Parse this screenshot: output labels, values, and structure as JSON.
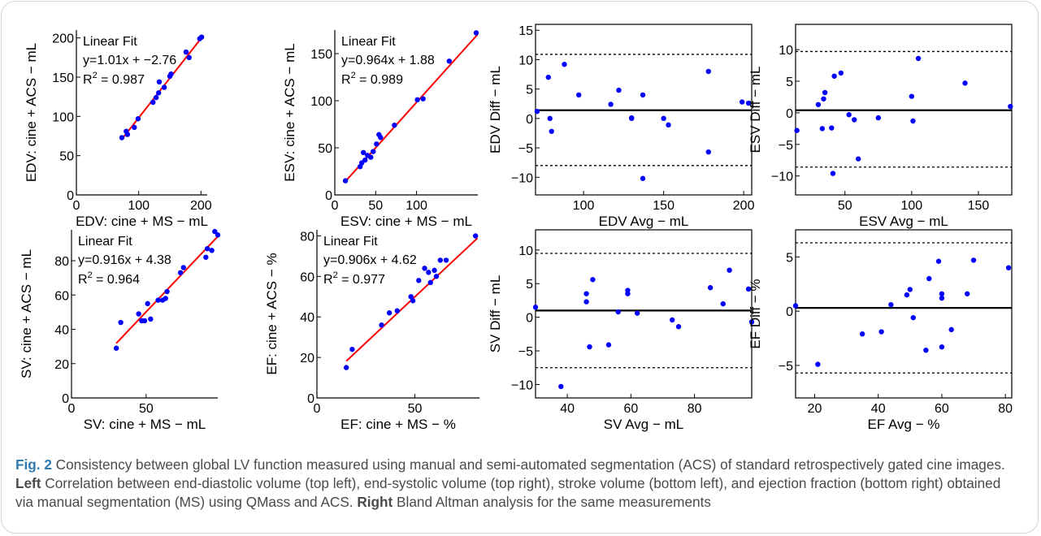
{
  "caption": {
    "fig_label": "Fig. 2",
    "text_a": " Consistency between global LV function measured using manual and semi-automated segmentation (ACS) of standard retrospectively gated cine images. ",
    "left_word": "Left",
    "text_b": " Correlation between end-diastolic volume (top left), end-systolic volume (top right), stroke volume (bottom left), and ejection fraction (bottom right) obtained via manual segmentation (MS) using QMass and ACS. ",
    "right_word": "Right",
    "text_c": " Bland Altman analysis for the same measurements"
  },
  "chart_data": [
    {
      "id": "edv-corr",
      "type": "scatter",
      "xlabel": "EDV: cine + MS − mL",
      "ylabel": "EDV: cine + ACS − mL",
      "xlim": [
        0,
        210
      ],
      "ylim": [
        0,
        210
      ],
      "xticks": [
        0,
        100,
        200
      ],
      "yticks": [
        0,
        50,
        100,
        150,
        200
      ],
      "annotation": [
        "Linear Fit",
        "y=1.01x + −2.76",
        "R2 = 0.987"
      ],
      "fit": {
        "slope": 1.01,
        "intercept": -2.76,
        "x_range": [
          72,
          200
        ]
      },
      "points": [
        [
          73,
          73
        ],
        [
          80,
          81
        ],
        [
          82,
          77
        ],
        [
          93,
          86
        ],
        [
          99,
          97
        ],
        [
          123,
          118
        ],
        [
          128,
          124
        ],
        [
          132,
          130
        ],
        [
          133,
          144
        ],
        [
          141,
          137
        ],
        [
          150,
          151
        ],
        [
          152,
          154
        ],
        [
          176,
          182
        ],
        [
          181,
          175
        ],
        [
          198,
          199
        ],
        [
          201,
          201
        ]
      ]
    },
    {
      "id": "esv-corr",
      "type": "scatter",
      "xlabel": "ESV: cine + MS − mL",
      "ylabel": "ESV: cine + ACS − mL",
      "xlim": [
        0,
        175
      ],
      "ylim": [
        0,
        175
      ],
      "xticks": [
        0,
        50,
        100
      ],
      "yticks": [
        0,
        50,
        100,
        150
      ],
      "annotation": [
        "Linear Fit",
        "y=0.964x + 1.88",
        "R2 = 0.989"
      ],
      "fit": {
        "slope": 0.964,
        "intercept": 1.88,
        "x_range": [
          12,
          175
        ]
      },
      "points": [
        [
          13,
          15
        ],
        [
          31,
          30
        ],
        [
          33,
          34
        ],
        [
          35,
          45
        ],
        [
          37,
          37
        ],
        [
          40,
          42
        ],
        [
          44,
          40
        ],
        [
          47,
          46
        ],
        [
          51,
          54
        ],
        [
          54,
          64
        ],
        [
          56,
          61
        ],
        [
          73,
          74
        ],
        [
          101,
          101
        ],
        [
          108,
          102
        ],
        [
          140,
          142
        ],
        [
          173,
          172
        ]
      ]
    },
    {
      "id": "sv-corr",
      "type": "scatter",
      "xlabel": "SV: cine + MS − mL",
      "ylabel": "SV: cine + ACS − mL",
      "xlim": [
        0,
        98
      ],
      "ylim": [
        0,
        98
      ],
      "xticks": [
        0,
        50
      ],
      "yticks": [
        0,
        20,
        40,
        60,
        80
      ],
      "annotation": [
        "Linear Fit",
        "y=0.916x + 4.38",
        "R2 = 0.964"
      ],
      "fit": {
        "slope": 0.916,
        "intercept": 4.38,
        "x_range": [
          30,
          98
        ]
      },
      "points": [
        [
          30,
          29
        ],
        [
          33,
          44
        ],
        [
          45,
          49
        ],
        [
          47,
          45
        ],
        [
          49,
          45
        ],
        [
          51,
          55
        ],
        [
          53,
          46
        ],
        [
          58,
          57
        ],
        [
          61,
          57
        ],
        [
          63,
          58
        ],
        [
          64,
          62
        ],
        [
          73,
          73
        ],
        [
          75,
          76
        ],
        [
          90,
          82
        ],
        [
          91,
          87
        ],
        [
          94,
          86
        ],
        [
          96,
          97
        ],
        [
          98,
          95
        ]
      ]
    },
    {
      "id": "ef-corr",
      "type": "scatter",
      "xlabel": "EF: cine + MS − %",
      "ylabel": "EF: cine + ACS − %",
      "xlim": [
        0,
        83
      ],
      "ylim": [
        0,
        83
      ],
      "xticks": [
        0,
        50
      ],
      "yticks": [
        0,
        20,
        40,
        60,
        80
      ],
      "annotation": [
        "Linear Fit",
        "y=0.906x + 4.62",
        "R2 = 0.977"
      ],
      "fit": {
        "slope": 0.906,
        "intercept": 4.62,
        "x_range": [
          15,
          82
        ]
      },
      "points": [
        [
          15,
          15
        ],
        [
          18,
          24
        ],
        [
          33,
          36
        ],
        [
          37,
          42
        ],
        [
          41,
          43
        ],
        [
          48,
          50
        ],
        [
          49,
          48
        ],
        [
          52,
          58
        ],
        [
          55,
          64
        ],
        [
          57,
          62
        ],
        [
          58,
          57
        ],
        [
          60,
          63
        ],
        [
          61,
          60
        ],
        [
          63,
          68
        ],
        [
          66,
          68
        ],
        [
          81,
          80
        ]
      ]
    },
    {
      "id": "edv-ba",
      "type": "scatter",
      "xlabel": "EDV Avg − mL",
      "ylabel": "EDV Diff − mL",
      "xlim": [
        70,
        205
      ],
      "ylim": [
        -13,
        16
      ],
      "xticks": [
        100,
        150,
        200
      ],
      "yticks": [
        -10,
        -5,
        0,
        5,
        10,
        15
      ],
      "mean": 1.4,
      "loa": [
        -8,
        10.9
      ],
      "points": [
        [
          71,
          1.2
        ],
        [
          78,
          7
        ],
        [
          79,
          0
        ],
        [
          80,
          -2.2
        ],
        [
          88,
          9.2
        ],
        [
          97,
          4
        ],
        [
          117,
          2.4
        ],
        [
          122,
          4.8
        ],
        [
          130,
          0
        ],
        [
          130,
          0.1
        ],
        [
          137,
          -10.2
        ],
        [
          137,
          4
        ],
        [
          150,
          0
        ],
        [
          153,
          -1.1
        ],
        [
          178,
          -5.7
        ],
        [
          178,
          8
        ],
        [
          199,
          2.8
        ],
        [
          203,
          2.6
        ]
      ]
    },
    {
      "id": "esv-ba",
      "type": "scatter",
      "xlabel": "ESV Avg − mL",
      "ylabel": "ESV Diff − mL",
      "xlim": [
        13,
        175
      ],
      "ylim": [
        -13,
        14
      ],
      "xticks": [
        50,
        100,
        150
      ],
      "yticks": [
        -10,
        -5,
        0,
        5,
        10
      ],
      "mean": 0.4,
      "loa": [
        -8.6,
        9.7
      ],
      "points": [
        [
          14,
          -2.8
        ],
        [
          30,
          1.3
        ],
        [
          33,
          -2.5
        ],
        [
          34,
          2.2
        ],
        [
          35,
          3.2
        ],
        [
          40,
          -2.4
        ],
        [
          41,
          -9.6
        ],
        [
          42,
          5.8
        ],
        [
          47,
          6.3
        ],
        [
          53,
          -0.3
        ],
        [
          57,
          -1.1
        ],
        [
          60,
          -7.3
        ],
        [
          75,
          -0.8
        ],
        [
          100,
          2.6
        ],
        [
          101,
          -1.3
        ],
        [
          105,
          8.6
        ],
        [
          140,
          4.7
        ],
        [
          174,
          1
        ]
      ]
    },
    {
      "id": "sv-ba",
      "type": "scatter",
      "xlabel": "SV Avg − mL",
      "ylabel": "SV Diff − mL",
      "xlim": [
        30,
        98
      ],
      "ylim": [
        -12,
        13
      ],
      "xticks": [
        40,
        60,
        80
      ],
      "yticks": [
        -10,
        -5,
        0,
        5,
        10
      ],
      "mean": 1,
      "loa": [
        -7.5,
        9.5
      ],
      "points": [
        [
          30,
          1.5
        ],
        [
          38,
          -10.3
        ],
        [
          46,
          3.5
        ],
        [
          46,
          2.3
        ],
        [
          47,
          -4.4
        ],
        [
          48,
          5.6
        ],
        [
          53,
          -4.1
        ],
        [
          56,
          0.8
        ],
        [
          59,
          4
        ],
        [
          59,
          3.5
        ],
        [
          62,
          0.6
        ],
        [
          73,
          -0.4
        ],
        [
          75,
          -1.4
        ],
        [
          85,
          4.4
        ],
        [
          89,
          2
        ],
        [
          91,
          7
        ],
        [
          97,
          4.2
        ],
        [
          98,
          -0.7
        ]
      ]
    },
    {
      "id": "ef-ba",
      "type": "scatter",
      "xlabel": "EF Avg − %",
      "ylabel": "EF Diff − %",
      "xlim": [
        14,
        82
      ],
      "ylim": [
        -8,
        7.5
      ],
      "xticks": [
        20,
        40,
        60,
        80
      ],
      "yticks": [
        -5,
        0,
        5
      ],
      "mean": 0.3,
      "loa": [
        -5.7,
        6.3
      ],
      "points": [
        [
          14,
          0.5
        ],
        [
          21,
          -4.9
        ],
        [
          35,
          -2.1
        ],
        [
          41,
          -1.9
        ],
        [
          44,
          0.6
        ],
        [
          49,
          1.5
        ],
        [
          50,
          2
        ],
        [
          51,
          -0.6
        ],
        [
          55,
          -3.6
        ],
        [
          56,
          3
        ],
        [
          59,
          4.6
        ],
        [
          60,
          1.6
        ],
        [
          60,
          1.2
        ],
        [
          60,
          -3.3
        ],
        [
          63,
          -1.7
        ],
        [
          68,
          1.6
        ],
        [
          70,
          4.7
        ],
        [
          81,
          4
        ]
      ]
    }
  ]
}
